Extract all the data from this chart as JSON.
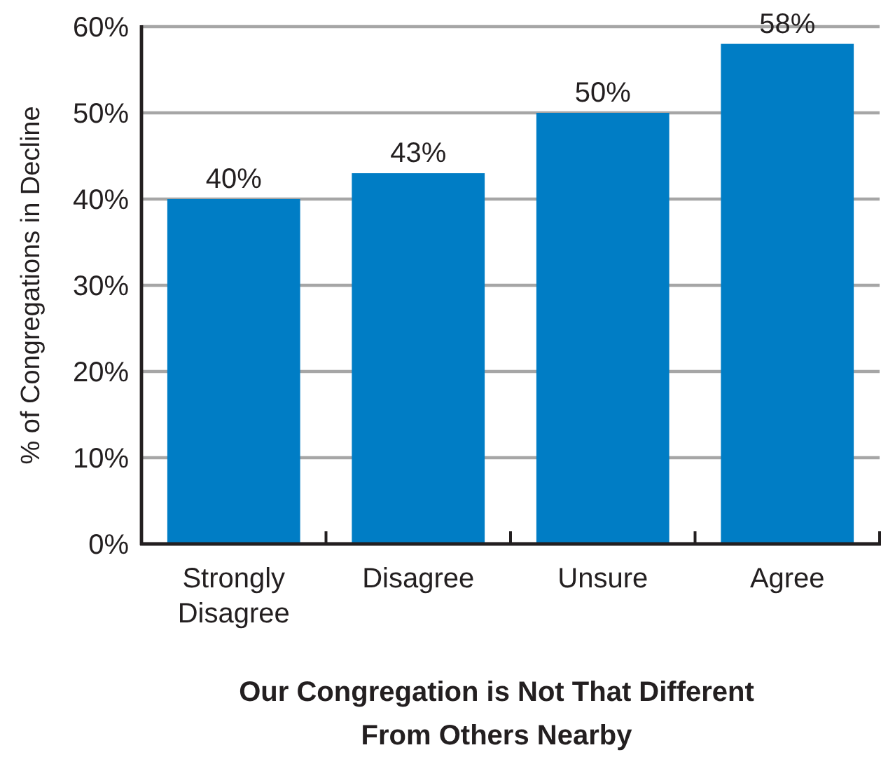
{
  "chart_data": {
    "type": "bar",
    "xlabel": "Our Congregation is Not That Different From Others Nearby",
    "ylabel": "% of Congregations in Decline",
    "categories": [
      "Strongly Disagree",
      "Disagree",
      "Unsure",
      "Agree"
    ],
    "values": [
      40,
      43,
      50,
      58
    ],
    "value_labels": [
      "40%",
      "43%",
      "50%",
      "58%"
    ],
    "color": "#007dc5",
    "ylim": [
      0,
      60
    ],
    "yticks": [
      {
        "value": 0,
        "label": "0%"
      },
      {
        "value": 10,
        "label": "10%"
      },
      {
        "value": 20,
        "label": "20%"
      },
      {
        "value": 30,
        "label": "30%"
      },
      {
        "value": 40,
        "label": "40%"
      },
      {
        "value": 50,
        "label": "50%"
      },
      {
        "value": 60,
        "label": "60%"
      }
    ],
    "grid": "y"
  }
}
